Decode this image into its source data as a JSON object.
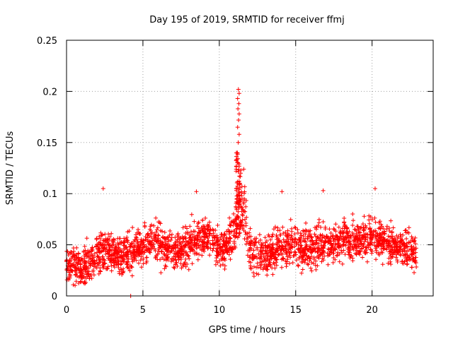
{
  "chart_data": {
    "type": "scatter",
    "title": "Day 195 of 2019, SRMTID for receiver ffmj",
    "xlabel": "GPS time / hours",
    "ylabel": "SRMTID / TECUs",
    "xlim": [
      0,
      24
    ],
    "ylim": [
      0,
      0.25
    ],
    "xticks": [
      0,
      5,
      10,
      15,
      20
    ],
    "yticks": [
      0,
      0.05,
      0.1,
      0.15,
      0.2,
      0.25
    ],
    "ytick_labels": [
      "0",
      "0.05",
      "0.1",
      "0.15",
      "0.2",
      "0.25"
    ],
    "grid": true,
    "marker": "plus",
    "color": "#ff0000",
    "baseline_profile": {
      "x": [
        0,
        0.5,
        1.0,
        1.5,
        2.0,
        2.5,
        3.0,
        3.5,
        4.0,
        4.5,
        5.0,
        5.5,
        6.0,
        6.5,
        7.0,
        7.5,
        8.0,
        8.5,
        9.0,
        9.5,
        10.0,
        10.5,
        11.0,
        11.3,
        11.6,
        12.0,
        12.5,
        13.0,
        13.5,
        14.0,
        14.5,
        15.0,
        15.5,
        16.0,
        16.5,
        17.0,
        17.5,
        18.0,
        18.5,
        19.0,
        19.5,
        20.0,
        20.5,
        21.0,
        21.5,
        22.0,
        22.5,
        22.9
      ],
      "y": [
        0.035,
        0.03,
        0.028,
        0.03,
        0.042,
        0.045,
        0.04,
        0.04,
        0.042,
        0.045,
        0.05,
        0.055,
        0.052,
        0.045,
        0.043,
        0.045,
        0.05,
        0.055,
        0.06,
        0.058,
        0.045,
        0.05,
        0.06,
        0.09,
        0.08,
        0.045,
        0.04,
        0.04,
        0.045,
        0.05,
        0.05,
        0.048,
        0.045,
        0.045,
        0.048,
        0.05,
        0.05,
        0.055,
        0.055,
        0.055,
        0.055,
        0.058,
        0.055,
        0.052,
        0.05,
        0.048,
        0.045,
        0.042
      ]
    },
    "spread": 0.016,
    "point_count": 2400,
    "notable_points": [
      {
        "x": 11.25,
        "y": 0.202
      },
      {
        "x": 11.3,
        "y": 0.198
      },
      {
        "x": 11.2,
        "y": 0.193
      },
      {
        "x": 11.28,
        "y": 0.188
      },
      {
        "x": 11.22,
        "y": 0.183
      },
      {
        "x": 11.3,
        "y": 0.178
      },
      {
        "x": 11.26,
        "y": 0.172
      },
      {
        "x": 11.2,
        "y": 0.165
      },
      {
        "x": 11.3,
        "y": 0.158
      },
      {
        "x": 11.24,
        "y": 0.15
      },
      {
        "x": 11.18,
        "y": 0.14
      },
      {
        "x": 11.6,
        "y": 0.124
      },
      {
        "x": 11.4,
        "y": 0.12
      },
      {
        "x": 11.1,
        "y": 0.122
      },
      {
        "x": 2.4,
        "y": 0.105
      },
      {
        "x": 20.2,
        "y": 0.105
      },
      {
        "x": 14.1,
        "y": 0.102
      },
      {
        "x": 16.8,
        "y": 0.103
      },
      {
        "x": 8.5,
        "y": 0.102
      },
      {
        "x": 4.2,
        "y": 0.0
      }
    ]
  }
}
